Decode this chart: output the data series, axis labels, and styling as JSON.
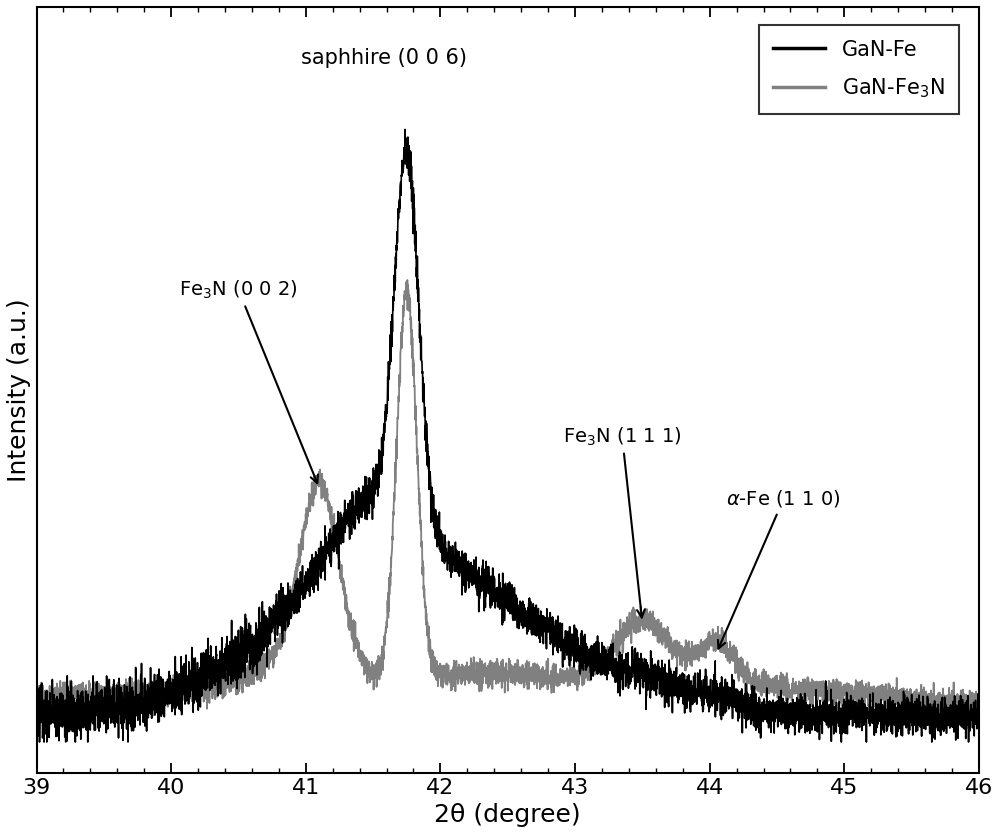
{
  "xmin": 39.0,
  "xmax": 46.0,
  "xlabel": "2θ (degree)",
  "ylabel": "Intensity (a.u.)",
  "line1_color": "#000000",
  "line2_color": "#808080",
  "line1_label": "GaN-Fe",
  "line2_label": "GaN-Fe$_3$N",
  "annotation_sapphire": "saphhire (0 0 6)",
  "figsize": [
    10.0,
    8.34
  ],
  "dpi": 100
}
